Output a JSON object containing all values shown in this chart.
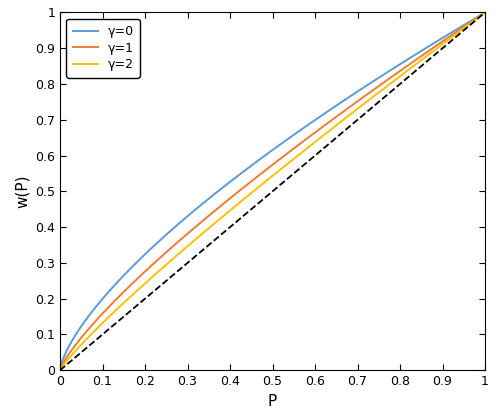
{
  "title": "",
  "xlabel": "P",
  "ylabel": "w(P)",
  "xlim": [
    0,
    1
  ],
  "ylim": [
    0,
    1
  ],
  "xticks": [
    0,
    0.1,
    0.2,
    0.3,
    0.4,
    0.5,
    0.6,
    0.7,
    0.8,
    0.9,
    1
  ],
  "yticks": [
    0,
    0.1,
    0.2,
    0.3,
    0.4,
    0.5,
    0.6,
    0.7,
    0.8,
    0.9,
    1
  ],
  "lines": [
    {
      "alpha_exp": 0.7,
      "label": "γ=0",
      "color": "#5B9BD5",
      "linewidth": 1.4
    },
    {
      "alpha_exp": 0.8,
      "label": "γ=1",
      "color": "#ED7D31",
      "linewidth": 1.4
    },
    {
      "alpha_exp": 0.88,
      "label": "γ=2",
      "color": "#FFC000",
      "linewidth": 1.4
    }
  ],
  "diagonal_color": "black",
  "diagonal_linestyle": "--",
  "diagonal_linewidth": 1.3,
  "legend_loc": "upper left",
  "legend_fontsize": 9,
  "axis_fontsize": 11,
  "tick_fontsize": 9,
  "figsize": [
    5.0,
    4.16
  ],
  "dpi": 100
}
